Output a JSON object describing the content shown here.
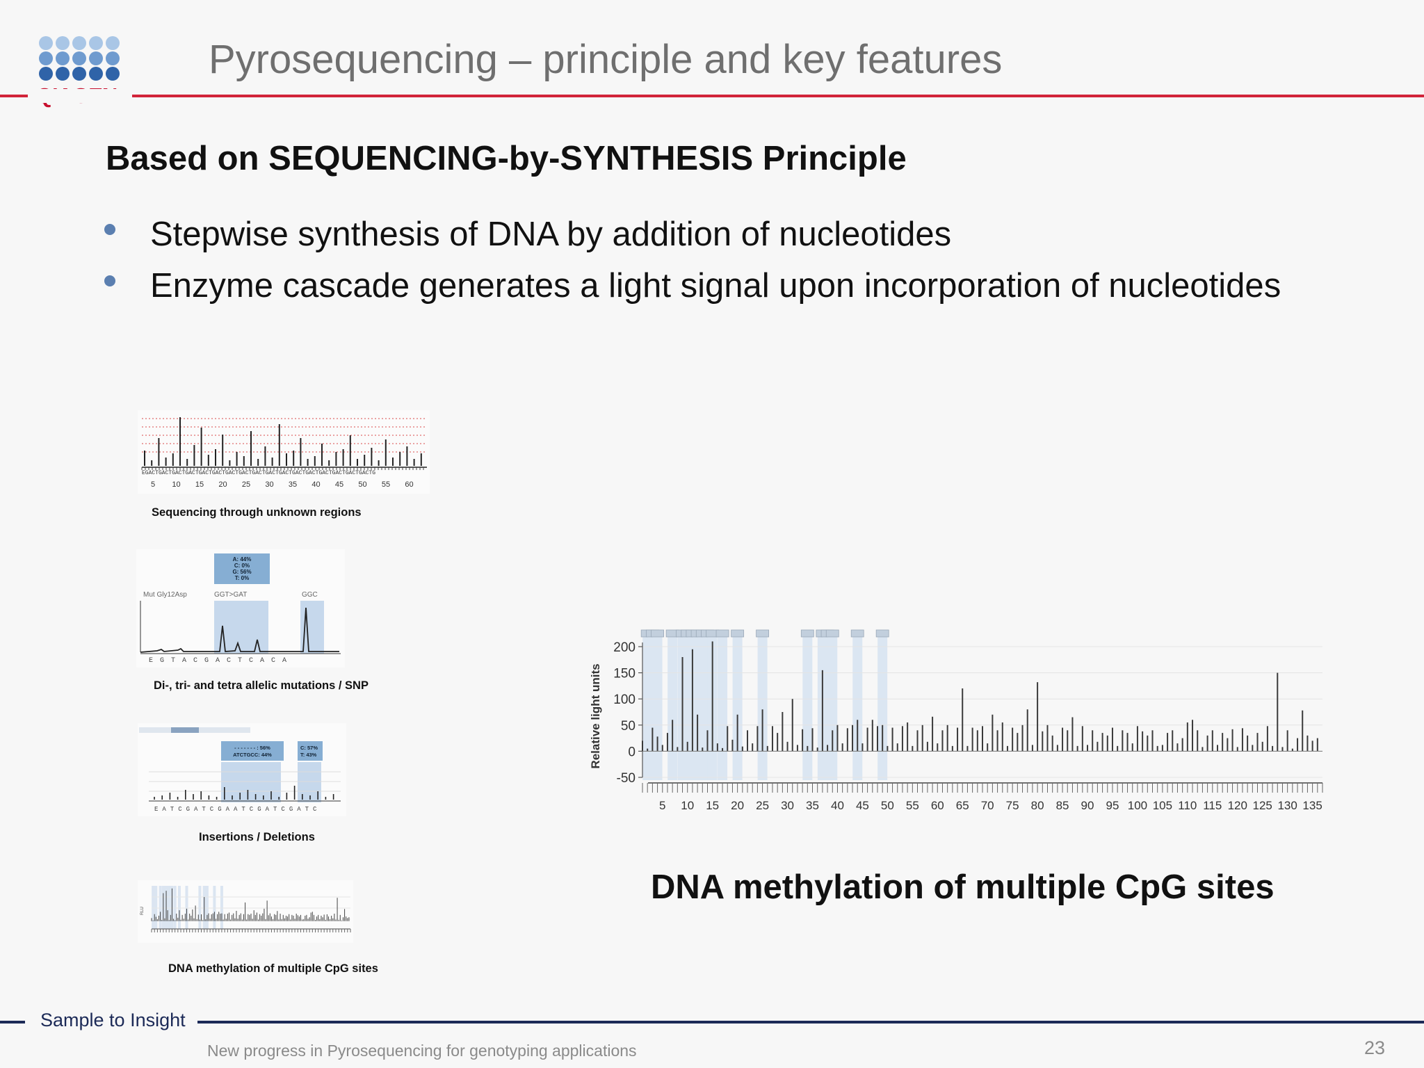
{
  "brand": {
    "logo_text": "QIAGEN",
    "logo_dot_colors": [
      "#a9c6e6",
      "#6f9bcf",
      "#2f63a8"
    ],
    "accent_color": "#d2243a",
    "footer_color": "#1c2a57"
  },
  "header": {
    "title": "Pyrosequencing – principle and key features"
  },
  "content": {
    "subtitle": "Based on SEQUENCING-by-SYNTHESIS Principle",
    "bullets": [
      "Stepwise synthesis of DNA by addition of nucleotides",
      "Enzyme cascade generates a light signal upon incorporation of nucleotides"
    ]
  },
  "examples": [
    {
      "caption": "Sequencing through unknown regions",
      "axis_ticks": [
        "5",
        "10",
        "15",
        "20",
        "25",
        "30",
        "35",
        "40",
        "45",
        "50",
        "55",
        "60"
      ]
    },
    {
      "caption": "Di-, tri- and tetra allelic mutations / SNP",
      "legend": [
        "A: 44%",
        "C: 0%",
        "G: 56%",
        "T: 0%"
      ],
      "labels": [
        "Mut Gly12Asp",
        "GGT>GAT",
        "GGC"
      ]
    },
    {
      "caption": "Insertions / Deletions",
      "legend_left": [
        "- - - - - - - : 56%",
        "ATCTGCC: 44%"
      ],
      "legend_right": [
        "C: 57%",
        "T: 43%"
      ]
    },
    {
      "caption": "DNA methylation of multiple CpG sites"
    }
  ],
  "methylation_chart": {
    "ylabel": "Relative light units",
    "caption": "DNA methylation of multiple CpG sites"
  },
  "chart_data": {
    "type": "bar",
    "title": "",
    "xlabel": "",
    "ylabel": "Relative light units",
    "ylim": [
      -50,
      200
    ],
    "yticks": [
      200,
      150,
      100,
      50,
      0,
      -50
    ],
    "xlim": [
      1,
      137
    ],
    "xticks": [
      5,
      10,
      15,
      20,
      25,
      30,
      35,
      40,
      45,
      50,
      55,
      60,
      65,
      70,
      75,
      80,
      85,
      90,
      95,
      100,
      105,
      110,
      115,
      120,
      125,
      130,
      135
    ],
    "grid": true,
    "x": [
      1,
      2,
      3,
      4,
      5,
      6,
      7,
      8,
      9,
      10,
      11,
      12,
      13,
      14,
      15,
      16,
      17,
      18,
      19,
      20,
      21,
      22,
      23,
      24,
      25,
      26,
      27,
      28,
      29,
      30,
      31,
      32,
      33,
      34,
      35,
      36,
      37,
      38,
      39,
      40,
      41,
      42,
      43,
      44,
      45,
      46,
      47,
      48,
      49,
      50,
      51,
      52,
      53,
      54,
      55,
      56,
      57,
      58,
      59,
      60,
      61,
      62,
      63,
      64,
      65,
      66,
      67,
      68,
      69,
      70,
      71,
      72,
      73,
      74,
      75,
      76,
      77,
      78,
      79,
      80,
      81,
      82,
      83,
      84,
      85,
      86,
      87,
      88,
      89,
      90,
      91,
      92,
      93,
      94,
      95,
      96,
      97,
      98,
      99,
      100,
      101,
      102,
      103,
      104,
      105,
      106,
      107,
      108,
      109,
      110,
      111,
      112,
      113,
      114,
      115,
      116,
      117,
      118,
      119,
      120,
      121,
      122,
      123,
      124,
      125,
      126,
      127,
      128,
      129,
      130,
      131,
      132,
      133,
      134,
      135,
      136
    ],
    "values": [
      20,
      5,
      45,
      28,
      12,
      35,
      60,
      8,
      180,
      18,
      195,
      70,
      7,
      40,
      210,
      15,
      6,
      48,
      22,
      70,
      9,
      40,
      15,
      48,
      80,
      10,
      48,
      35,
      75,
      18,
      100,
      12,
      42,
      10,
      44,
      7,
      155,
      12,
      40,
      50,
      15,
      44,
      50,
      60,
      15,
      45,
      60,
      48,
      50,
      10,
      45,
      15,
      48,
      55,
      10,
      40,
      50,
      18,
      66,
      15,
      40,
      50,
      10,
      45,
      120,
      10,
      45,
      40,
      48,
      15,
      70,
      40,
      55,
      10,
      45,
      35,
      50,
      80,
      12,
      132,
      38,
      50,
      30,
      12,
      45,
      40,
      65,
      10,
      48,
      12,
      40,
      18,
      35,
      30,
      45,
      10,
      40,
      35,
      15,
      48,
      38,
      30,
      40,
      10,
      12,
      35,
      40,
      15,
      25,
      55,
      60,
      40,
      8,
      30,
      40,
      12,
      35,
      25,
      42,
      8,
      44,
      30,
      12,
      35,
      18,
      48,
      10,
      150,
      8,
      40,
      5,
      25,
      78,
      30,
      20,
      25
    ],
    "cpg_sites": [
      1,
      2,
      3,
      6,
      8,
      9,
      10,
      11,
      12,
      13,
      14,
      16,
      19,
      24,
      33,
      36,
      37,
      38,
      43,
      48
    ]
  }
}
